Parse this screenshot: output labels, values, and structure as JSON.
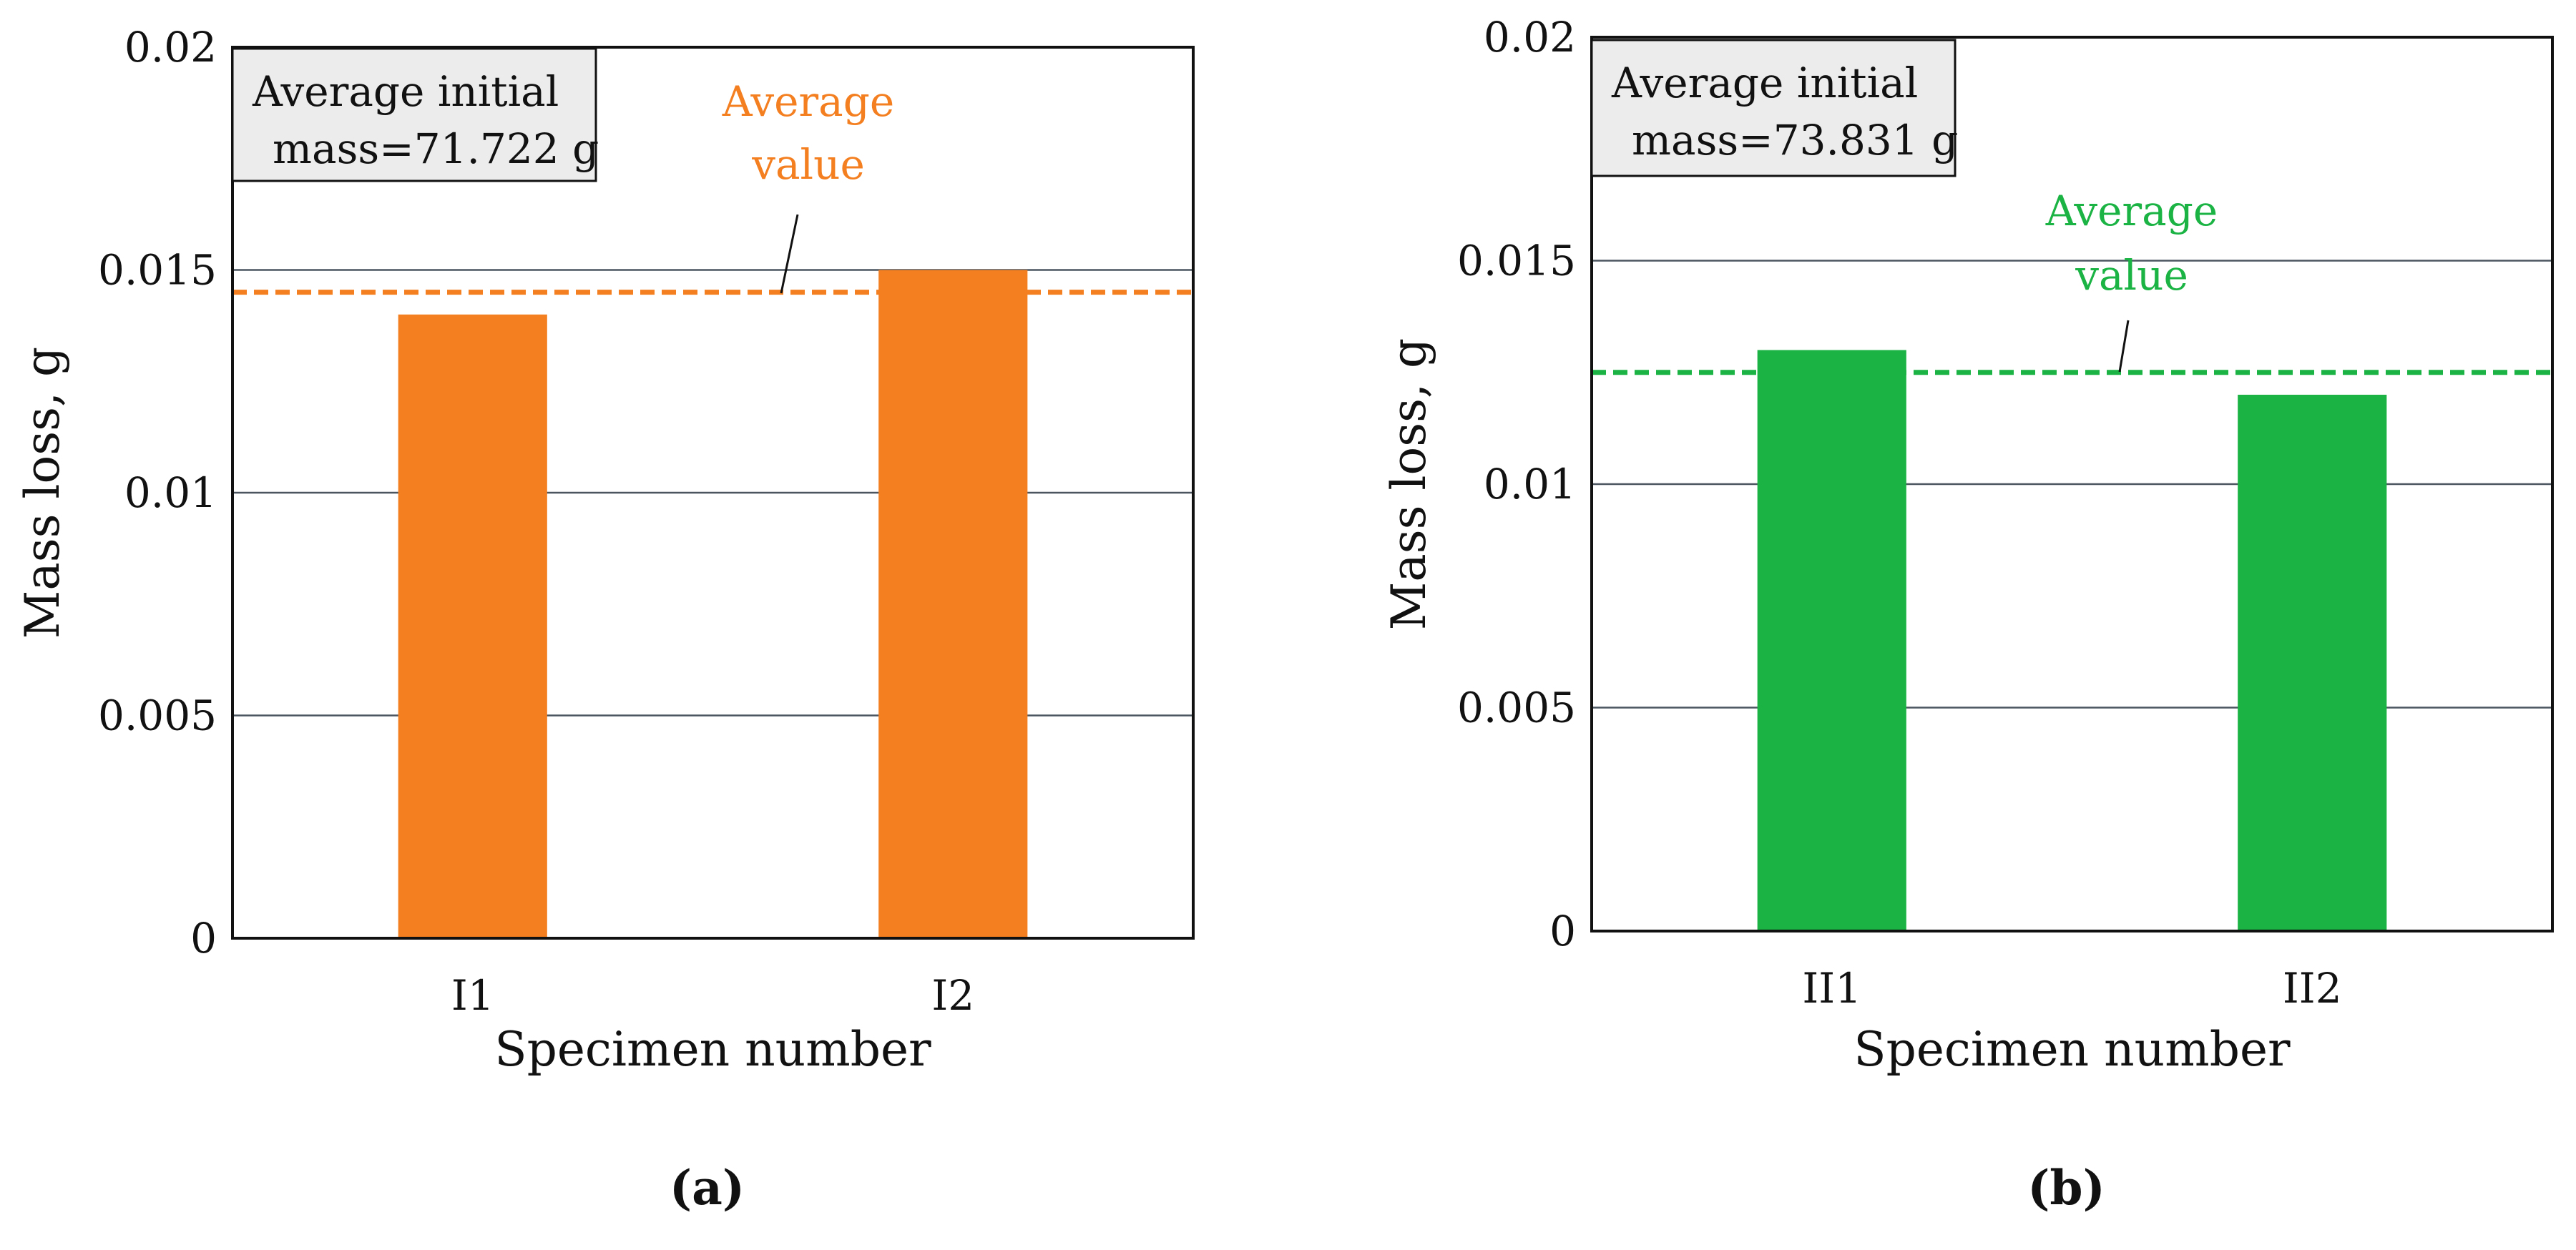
{
  "chart_data": [
    {
      "type": "bar",
      "panel_label": "(a)",
      "categories": [
        "I1",
        "I2"
      ],
      "values": [
        0.014,
        0.015
      ],
      "average_value": 0.0145,
      "average_label": [
        "Average",
        "value"
      ],
      "info_box": [
        "Average initial",
        "mass=71.722 g"
      ],
      "xlabel": "Specimen number",
      "ylabel": "Mass loss, g",
      "ylim": [
        0,
        0.02
      ],
      "yticks": [
        0,
        0.005,
        0.01,
        0.015,
        0.02
      ],
      "ytick_labels": [
        "0",
        "0.005",
        "0.01",
        "0.015",
        "0.02"
      ],
      "grid": true,
      "bar_color": "#F47F20",
      "avg_color": "#F47F20"
    },
    {
      "type": "bar",
      "panel_label": "(b)",
      "categories": [
        "II1",
        "II2"
      ],
      "values": [
        0.013,
        0.012
      ],
      "average_value": 0.0125,
      "average_label": [
        "Average",
        "value"
      ],
      "info_box": [
        "Average initial",
        "mass=73.831 g"
      ],
      "xlabel": "Specimen number",
      "ylabel": "Mass loss, g",
      "ylim": [
        0,
        0.02
      ],
      "yticks": [
        0,
        0.005,
        0.01,
        0.015,
        0.02
      ],
      "ytick_labels": [
        "0",
        "0.005",
        "0.01",
        "0.015",
        "0.02"
      ],
      "grid": true,
      "bar_color": "#1BB444",
      "avg_color": "#1BB444"
    }
  ]
}
